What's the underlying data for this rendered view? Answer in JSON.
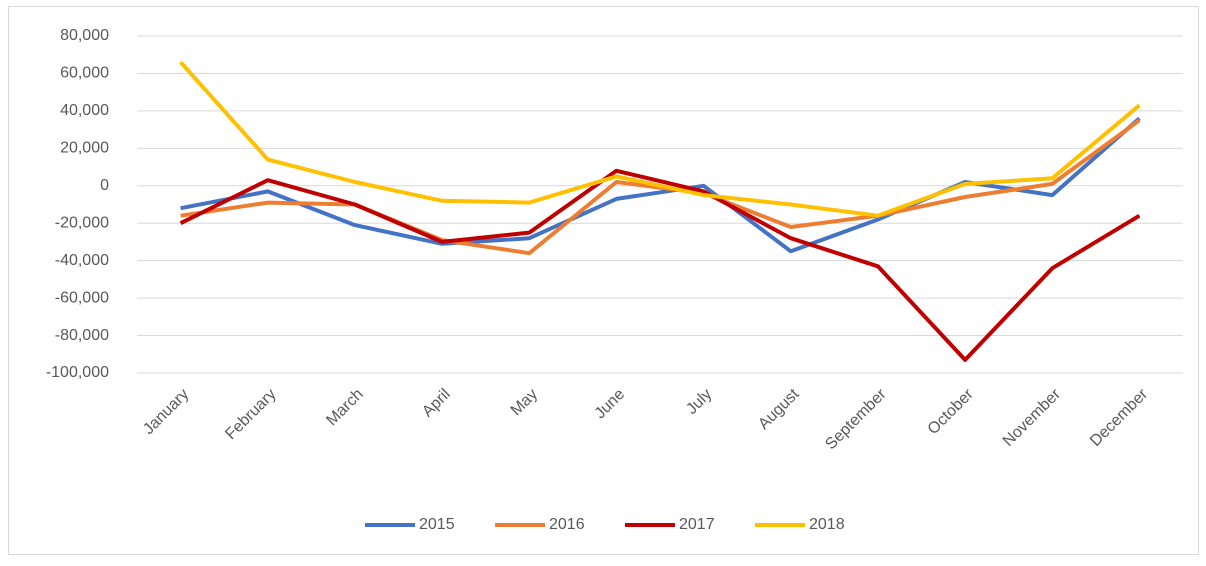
{
  "chart_data": {
    "type": "line",
    "categories": [
      "January",
      "February",
      "March",
      "April",
      "May",
      "June",
      "July",
      "August",
      "September",
      "October",
      "November",
      "December"
    ],
    "series": [
      {
        "name": "2015",
        "color": "#4472c4",
        "values": [
          -12000,
          -3000,
          -21000,
          -31000,
          -28000,
          -7000,
          0,
          -35000,
          -18000,
          2000,
          -5000,
          36000
        ]
      },
      {
        "name": "2016",
        "color": "#ed7d31",
        "values": [
          -16000,
          -9000,
          -10000,
          -29000,
          -36000,
          2000,
          -4000,
          -22000,
          -16000,
          -6000,
          1000,
          35000
        ]
      },
      {
        "name": "2017",
        "color": "#c00000",
        "values": [
          -20000,
          3000,
          -10000,
          -30000,
          -25000,
          8000,
          -3000,
          -28000,
          -43000,
          -93000,
          -44000,
          -16000
        ]
      },
      {
        "name": "2018",
        "color": "#ffc000",
        "values": [
          66000,
          14000,
          2000,
          -8000,
          -9000,
          5000,
          -5000,
          -10000,
          -16000,
          1000,
          4000,
          43000
        ]
      }
    ],
    "ylim": [
      -100000,
      80000
    ],
    "yticks": [
      {
        "value": -100000,
        "label": "-100,000"
      },
      {
        "value": -80000,
        "label": "-80,000"
      },
      {
        "value": -60000,
        "label": "-60,000"
      },
      {
        "value": -40000,
        "label": "-40,000"
      },
      {
        "value": -20000,
        "label": "-20,000"
      },
      0,
      {
        "value": 20000,
        "label": "20,000"
      },
      {
        "value": 40000,
        "label": "40,000"
      },
      {
        "value": 60000,
        "label": "60,000"
      },
      {
        "value": 80000,
        "label": "80,000"
      }
    ],
    "grid": true,
    "legend": "bottom"
  }
}
